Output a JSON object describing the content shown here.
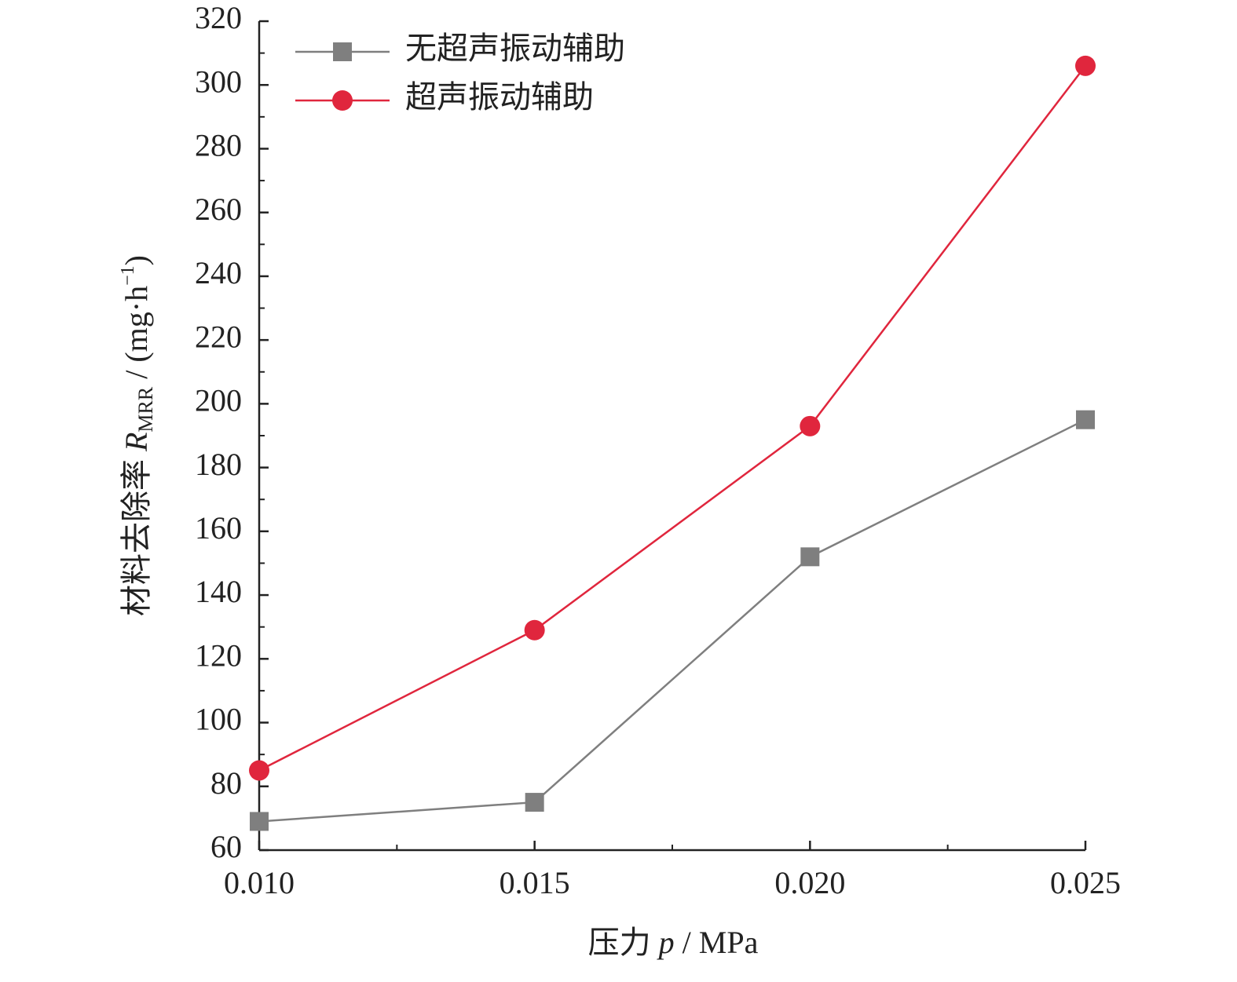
{
  "chart_data": {
    "type": "line",
    "xlabel": {
      "name": "压力 ",
      "var": "p",
      "unit": " / MPa"
    },
    "ylabel": {
      "name": "材料去除率 ",
      "var": "R",
      "sub": "MRR",
      "unit": " / (mg·h",
      "sup": "−1",
      "close": ")"
    },
    "x": [
      0.01,
      0.015,
      0.02,
      0.025
    ],
    "series": [
      {
        "name": "无超声振动辅助",
        "color": "#7f7f7f",
        "marker": "square",
        "values": [
          69,
          75,
          152,
          195
        ]
      },
      {
        "name": "超声振动辅助",
        "color": "#e0263d",
        "marker": "circle",
        "values": [
          85,
          129,
          193,
          306
        ]
      }
    ],
    "xlim": [
      0.01,
      0.025
    ],
    "xticks": [
      {
        "value": 0.01,
        "label": "0.010"
      },
      {
        "value": 0.015,
        "label": "0.015"
      },
      {
        "value": 0.02,
        "label": "0.020"
      },
      {
        "value": 0.025,
        "label": "0.025"
      }
    ],
    "xminorticks": [
      0.0125,
      0.0175,
      0.0225
    ],
    "ylim": [
      60,
      320
    ],
    "yticks": [
      60,
      80,
      100,
      120,
      140,
      160,
      180,
      200,
      220,
      240,
      260,
      280,
      300,
      320
    ],
    "yminorticks": [
      70,
      90,
      110,
      130,
      150,
      170,
      190,
      210,
      230,
      250,
      270,
      290,
      310
    ],
    "legend": "top-left"
  }
}
